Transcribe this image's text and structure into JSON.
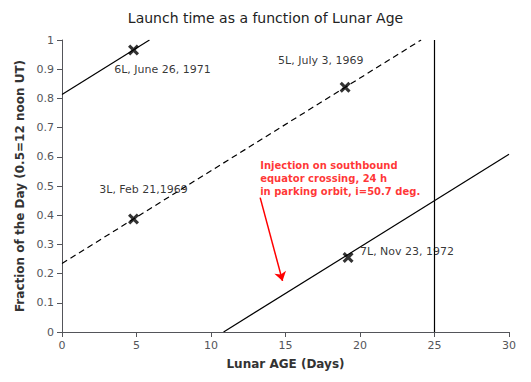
{
  "chart_data": {
    "type": "scatter",
    "title": "Launch time as a function of Lunar Age",
    "xlabel": "Lunar AGE (Days)",
    "ylabel": "Fraction of the Day (0.5=12 noon UT)",
    "xlim": [
      0,
      30
    ],
    "ylim": [
      0,
      1
    ],
    "xticks": [
      0,
      5,
      10,
      15,
      20,
      25,
      30
    ],
    "yticks": [
      0,
      0.1,
      0.2,
      0.3,
      0.4,
      0.5,
      0.6,
      0.7,
      0.8,
      0.9,
      1
    ],
    "grid": false,
    "series": [
      {
        "type": "line",
        "line_style": "solid",
        "color": "#000000",
        "x": [
          0,
          5.8705
        ],
        "values": [
          0.8135,
          1
        ]
      },
      {
        "type": "line",
        "line_style": "solid",
        "color": "#000000",
        "x": [
          10.8452,
          30
        ],
        "values": [
          0,
          0.6084
        ]
      },
      {
        "type": "line",
        "line_style": "dashed",
        "color": "#000000",
        "x": [
          0,
          24.1007
        ],
        "values": [
          0.2345,
          1
        ]
      },
      {
        "type": "line",
        "line_style": "solid",
        "color": "#000000",
        "x": [
          25,
          25
        ],
        "values": [
          0,
          1
        ]
      },
      {
        "type": "scatter",
        "marker": "x",
        "color": "#000000",
        "x": [
          4.8,
          4.8,
          19.0,
          19.2
        ],
        "values": [
          0.966,
          0.387,
          0.838,
          0.255
        ]
      }
    ],
    "annotations": [
      {
        "text": "6L, June 26, 1971",
        "x": 3.5,
        "y": 0.875
      },
      {
        "text": "3L, Feb 21,1969",
        "x": 2.5,
        "y": 0.465
      },
      {
        "text": "5L, July 3, 1969",
        "x": 14.5,
        "y": 0.905
      },
      {
        "text": "7L, Nov 23, 1972",
        "x": 20.0,
        "y": 0.252
      },
      {
        "text": "Injection on southbound\nequator crossing, 24 h\nin parking orbit, i=50.7 deg.",
        "x": 13.3,
        "y": 0.46,
        "arrow_x": 14.8,
        "arrow_y": 0.175,
        "color": "#ff0000"
      }
    ]
  }
}
